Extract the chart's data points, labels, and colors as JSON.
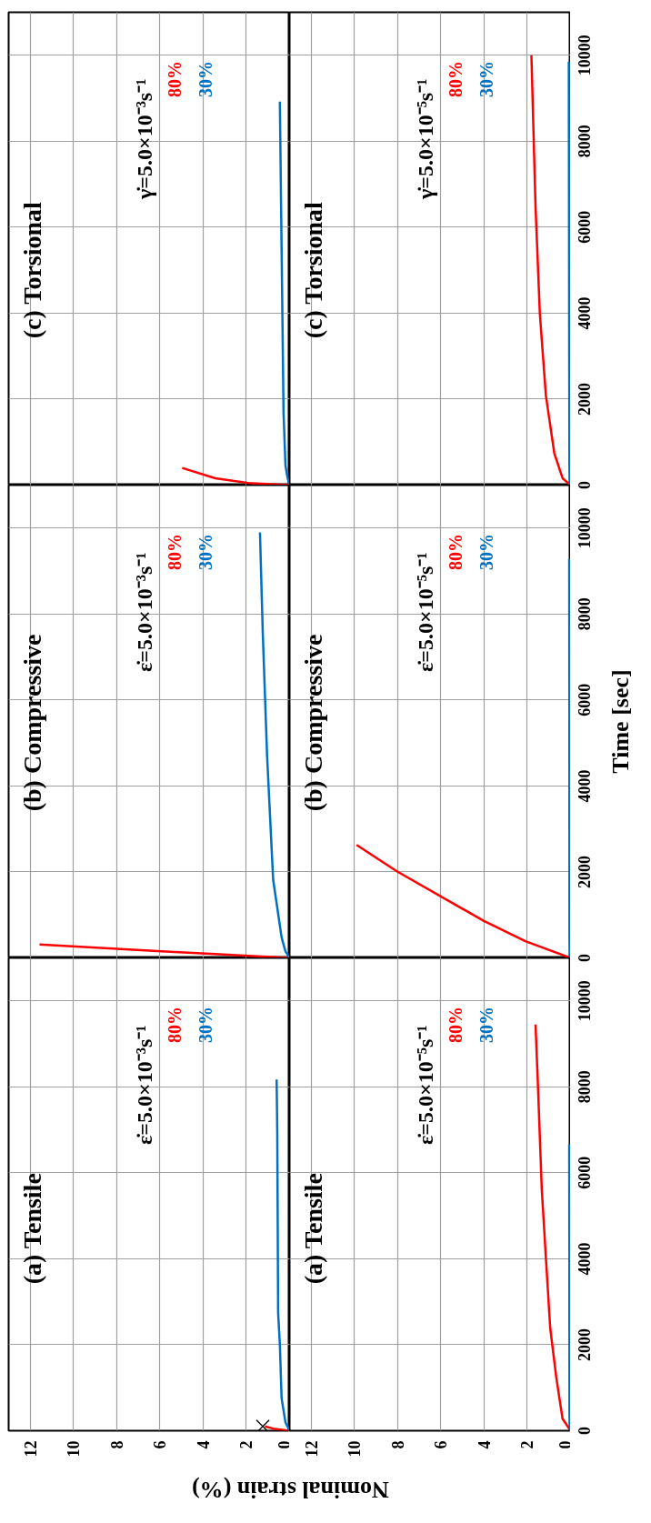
{
  "chart_data": [
    {
      "type": "line",
      "title": "(c) Torsional",
      "annotations": [
        "γ̇=5.0×10⁻³s⁻¹"
      ],
      "xlim": [
        13,
        0
      ],
      "xticks": [
        0,
        2,
        4,
        6,
        8,
        10,
        12
      ],
      "ylim": [
        0,
        11000
      ],
      "yticks": [
        0,
        2000,
        4000,
        6000,
        8000,
        10000
      ],
      "grid": true,
      "tick_labels": false,
      "series": [
        {
          "name": "80%",
          "color": "#ff0000",
          "x": [
            0,
            1.91,
            3.44,
            4.97
          ],
          "values": [
            0,
            50,
            160,
            400
          ]
        },
        {
          "name": "30%",
          "color": "#0070c0",
          "x": [
            0,
            0.09,
            0.19,
            0.28,
            0.37,
            0.45
          ],
          "values": [
            0,
            160,
            450,
            1700,
            5520,
            8920
          ]
        }
      ]
    },
    {
      "type": "line",
      "title": "(c) Torsional",
      "annotations": [
        "γ̇=5.0×10⁻⁵s⁻¹"
      ],
      "xlim": [
        13,
        0
      ],
      "xticks": [
        0,
        2,
        4,
        6,
        8,
        10,
        12
      ],
      "ylim": [
        0,
        11000
      ],
      "yticks": [
        0,
        2000,
        4000,
        6000,
        8000,
        10000
      ],
      "grid": true,
      "tick_labels": "y",
      "series": [
        {
          "name": "80%",
          "color": "#ff0000",
          "x": [
            0,
            0.37,
            0.75,
            1.14,
            1.42,
            1.62,
            1.81
          ],
          "values": [
            0,
            160,
            740,
            2080,
            3990,
            6480,
            10000
          ]
        },
        {
          "name": "30%",
          "color": "#0070c0",
          "x": [
            0,
            0.05,
            0.06,
            0.08
          ],
          "values": [
            0,
            500,
            3000,
            9850
          ]
        }
      ]
    },
    {
      "type": "line",
      "title": "(b) Compressive",
      "annotations": [
        "ε̇=5.0×10⁻³s⁻¹"
      ],
      "xlim": [
        13,
        0
      ],
      "xticks": [
        0,
        2,
        4,
        6,
        8,
        10,
        12
      ],
      "ylim": [
        0,
        11000
      ],
      "yticks": [
        0,
        2000,
        4000,
        6000,
        8000,
        10000
      ],
      "grid": true,
      "tick_labels": false,
      "series": [
        {
          "name": "80%",
          "color": "#ff0000",
          "x": [
            0,
            5.73,
            11.57
          ],
          "values": [
            0,
            150,
            310
          ]
        },
        {
          "name": "30%",
          "color": "#0070c0",
          "x": [
            0,
            0.19,
            0.37,
            0.76,
            1.04,
            1.24,
            1.37
          ],
          "values": [
            0,
            150,
            480,
            1820,
            4690,
            7560,
            9900
          ]
        }
      ]
    },
    {
      "type": "line",
      "title": "(b) Compressive",
      "annotations": [
        "ε̇=5.0×10⁻⁵s⁻¹"
      ],
      "ylabel": "Time [sec]",
      "xlim": [
        13,
        0
      ],
      "xticks": [
        0,
        2,
        4,
        6,
        8,
        10,
        12
      ],
      "ylim": [
        0,
        11000
      ],
      "yticks": [
        0,
        2000,
        4000,
        6000,
        8000,
        10000
      ],
      "grid": true,
      "tick_labels": "y",
      "series": [
        {
          "name": "80%",
          "color": "#ff0000",
          "x": [
            0,
            2.09,
            4.01,
            8.02,
            9.9
          ],
          "values": [
            0,
            390,
            860,
            2010,
            2630
          ]
        },
        {
          "name": "30%",
          "color": "#0070c0",
          "x": [
            0,
            0.04,
            0.05,
            0.06
          ],
          "values": [
            0,
            500,
            4000,
            9280
          ]
        }
      ]
    },
    {
      "type": "line",
      "title": "(a) Tensile",
      "annotations": [
        "ε̇=5.0×10⁻³s⁻¹"
      ],
      "xlabel": "Nominal strain (%)",
      "xlim": [
        13,
        0
      ],
      "xticks": [
        0,
        2,
        4,
        6,
        8,
        10,
        12
      ],
      "ylim": [
        0,
        11000
      ],
      "yticks": [
        0,
        2000,
        4000,
        6000,
        8000,
        10000
      ],
      "grid": true,
      "tick_labels": "x",
      "series": [
        {
          "name": "80%",
          "color": "#ff0000",
          "x": [
            0,
            0.76,
            1.14
          ],
          "values": [
            0,
            50,
            100
          ]
        },
        {
          "name": "30%",
          "color": "#0070c0",
          "x": [
            0,
            0.19,
            0.37,
            0.45,
            0.53,
            0.57,
            0.6
          ],
          "values": [
            0,
            190,
            760,
            2010,
            2740,
            6950,
            8170
          ]
        },
        {
          "type": "scatter",
          "marker": "cross",
          "color": "#000000",
          "x": [
            1.24
          ],
          "values": [
            100
          ]
        }
      ]
    },
    {
      "type": "line",
      "title": "(a) Tensile",
      "annotations": [
        "ε̇=5.0×10⁻⁵s⁻¹"
      ],
      "xlim": [
        13,
        0
      ],
      "xticks": [
        0,
        2,
        4,
        6,
        8,
        10,
        12
      ],
      "ylim": [
        0,
        11000
      ],
      "yticks": [
        0,
        2000,
        4000,
        6000,
        8000,
        10000
      ],
      "grid": true,
      "series": [
        {
          "name": "80%",
          "color": "#ff0000",
          "x": [
            0,
            0.37,
            0.66,
            0.94,
            1.14,
            1.33,
            1.52,
            1.62
          ],
          "values": [
            0,
            280,
            1240,
            2390,
            4020,
            5610,
            8190,
            9450
          ]
        },
        {
          "name": "30%",
          "color": "#0070c0",
          "x": [
            0,
            0.04,
            0.05,
            0.06
          ],
          "values": [
            0,
            500,
            3000,
            6660
          ]
        }
      ]
    }
  ]
}
